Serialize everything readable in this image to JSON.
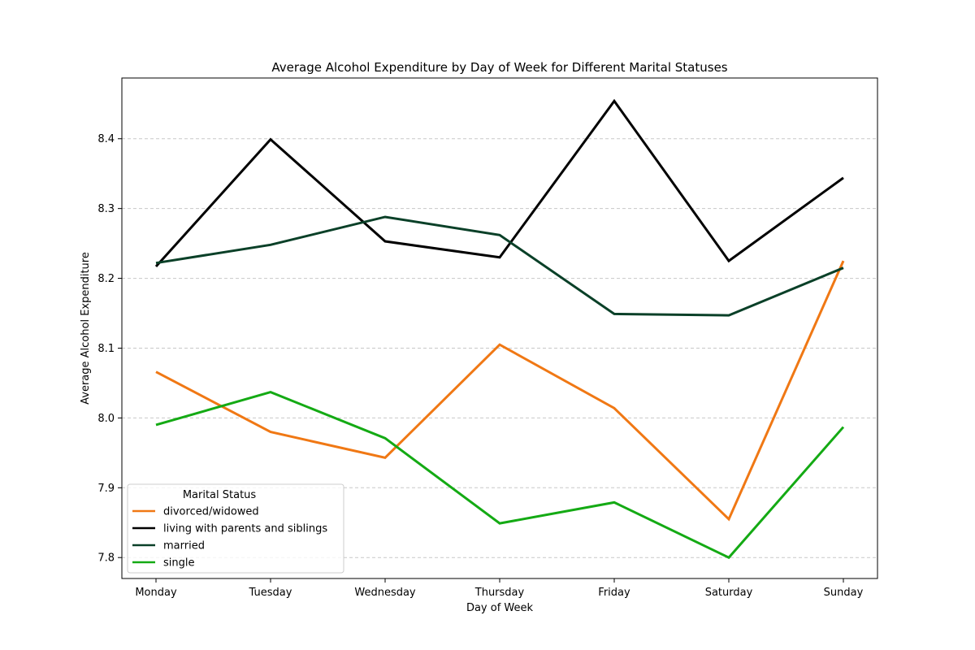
{
  "chart_data": {
    "type": "line",
    "title": "Average Alcohol Expenditure by Day of Week for Different Marital Statuses",
    "xlabel": "Day of Week",
    "ylabel": "Average Alcohol Expenditure",
    "categories": [
      "Monday",
      "Tuesday",
      "Wednesday",
      "Thursday",
      "Friday",
      "Saturday",
      "Sunday"
    ],
    "ylim": [
      7.77,
      8.487
    ],
    "yticks": [
      7.8,
      7.9,
      8.0,
      8.1,
      8.2,
      8.3,
      8.4
    ],
    "ytick_labels": [
      "7.8",
      "7.9",
      "8.0",
      "8.1",
      "8.2",
      "8.3",
      "8.4"
    ],
    "grid": "horizontal-dashed",
    "legend": {
      "title": "Marital Status",
      "placement": "lower-left"
    },
    "series": [
      {
        "name": "divorced/widowed",
        "color": "#f07814",
        "values": [
          8.066,
          7.98,
          7.943,
          8.105,
          8.014,
          7.855,
          8.225
        ]
      },
      {
        "name": "living with parents and siblings",
        "color": "#000000",
        "values": [
          8.217,
          8.399,
          8.253,
          8.23,
          8.454,
          8.225,
          8.344
        ]
      },
      {
        "name": "married",
        "color": "#0a4028",
        "values": [
          8.222,
          8.248,
          8.288,
          8.262,
          8.149,
          8.147,
          8.215
        ]
      },
      {
        "name": "single",
        "color": "#14aa14",
        "values": [
          7.99,
          8.037,
          7.971,
          7.849,
          7.879,
          7.8,
          7.987
        ]
      }
    ]
  }
}
